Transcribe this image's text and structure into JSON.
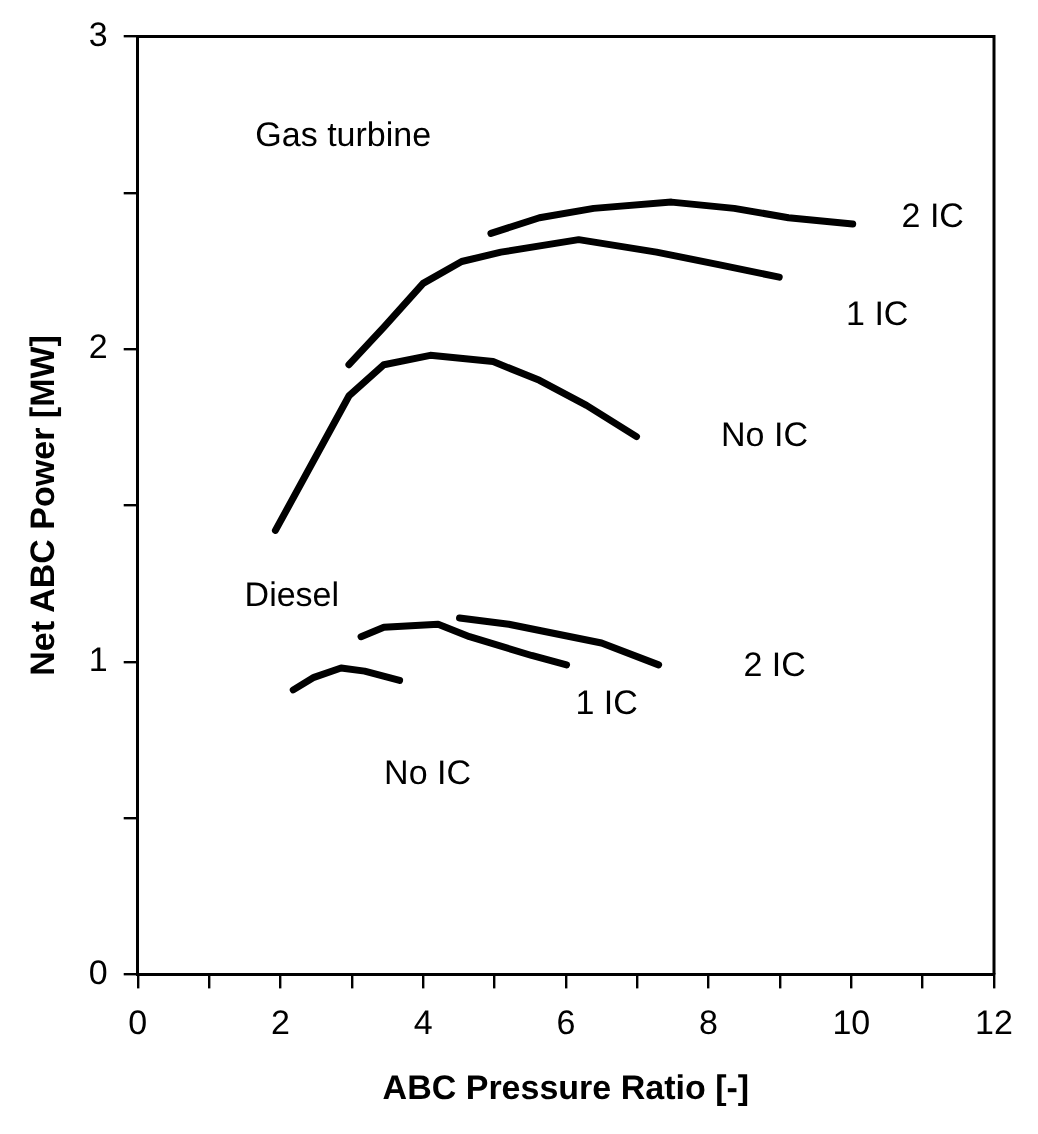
{
  "chart_data": {
    "type": "line",
    "xlabel": "ABC Pressure Ratio [-]",
    "ylabel": "Net ABC Power [MW]",
    "xlim": [
      0,
      12
    ],
    "xticks": [
      0,
      {
        "value": 1,
        "label": null
      },
      2,
      {
        "value": 3,
        "label": null
      },
      4,
      {
        "value": 5,
        "label": null
      },
      6,
      {
        "value": 7,
        "label": null
      },
      8,
      {
        "value": 9,
        "label": null
      },
      10,
      {
        "value": 11,
        "label": null
      },
      12
    ],
    "ylim": [
      0,
      3
    ],
    "yticks": [
      0,
      {
        "value": 0.5,
        "label": null
      },
      1,
      {
        "value": 1.5,
        "label": null
      },
      2,
      {
        "value": 2.5,
        "label": null
      },
      3
    ],
    "grid": false,
    "legend": false,
    "marker": "none",
    "line_style": "solid",
    "series": [
      {
        "name": "No IC",
        "color": "#000000",
        "x": [
          1.93,
          2.96,
          3.45,
          4.1,
          4.98,
          5.63,
          6.29,
          6.99
        ],
        "values": [
          1.42,
          1.85,
          1.95,
          1.98,
          1.96,
          1.9,
          1.82,
          1.72
        ]
      },
      {
        "name": "1 IC",
        "color": "#000000",
        "x": [
          2.96,
          3.45,
          4.0,
          4.54,
          5.09,
          6.18,
          7.27,
          8.14,
          8.99
        ],
        "values": [
          1.95,
          2.07,
          2.21,
          2.28,
          2.31,
          2.35,
          2.31,
          2.27,
          2.23
        ]
      },
      {
        "name": "2 IC",
        "color": "#000000",
        "x": [
          4.95,
          5.63,
          6.39,
          7.48,
          8.36,
          9.12,
          10.02
        ],
        "values": [
          2.37,
          2.42,
          2.45,
          2.47,
          2.45,
          2.42,
          2.4
        ]
      },
      {
        "name": "No IC",
        "color": "#000000",
        "x": [
          2.18,
          2.47,
          2.85,
          3.18,
          3.67
        ],
        "values": [
          0.91,
          0.95,
          0.98,
          0.97,
          0.94
        ]
      },
      {
        "name": "1 IC",
        "color": "#000000",
        "x": [
          3.13,
          3.45,
          4.21,
          4.65,
          5.52,
          6.01
        ],
        "values": [
          1.08,
          1.11,
          1.12,
          1.08,
          1.02,
          0.99
        ]
      },
      {
        "name": "2 IC",
        "color": "#000000",
        "x": [
          4.51,
          5.2,
          6.5,
          7.3
        ],
        "values": [
          1.14,
          1.12,
          1.06,
          0.99
        ]
      }
    ],
    "annotations": [
      "Gas turbine",
      "Diesel"
    ]
  }
}
